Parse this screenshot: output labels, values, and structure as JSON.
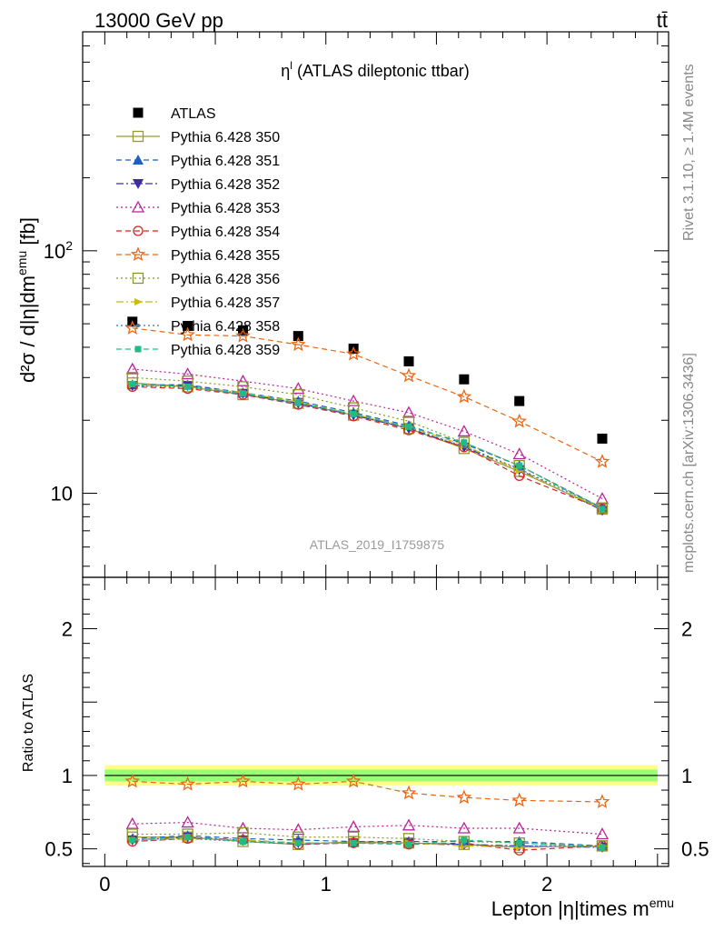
{
  "header": {
    "energy_label": "13000 GeV pp",
    "process_label": "tt̄"
  },
  "side_labels": {
    "rivet": "Rivet 3.1.10, ≥ 1.4M events",
    "mcplots": "mcplots.cern.ch [arXiv:1306.3436]"
  },
  "chart_data": [
    {
      "type": "scatter",
      "title": "η",
      "title_sup": "l",
      "title_rest": " (ATLAS dileptonic ttbar)",
      "ylabel": "d²σ / d|η|dm",
      "ylabel_sup": "emu",
      "ylabel_unit": " [fb]",
      "yscale": "log",
      "ylim": [
        4.5,
        800
      ],
      "xlim": [
        -0.1,
        2.55
      ],
      "yticks": [
        10,
        100
      ],
      "ytick_labels": [
        "10",
        "10²"
      ],
      "watermark": "ATLAS_2019_I1759875",
      "legend_position": "top-left",
      "x": [
        0.125,
        0.375,
        0.625,
        0.875,
        1.125,
        1.375,
        1.625,
        1.875,
        2.25
      ],
      "series": [
        {
          "name": "ATLAS",
          "color": "#000000",
          "marker": "square-filled",
          "line": "none",
          "values": [
            51.0,
            49.0,
            47.0,
            44.5,
            39.5,
            35.0,
            29.5,
            24.0,
            16.8
          ]
        },
        {
          "name": "Pythia 6.428 350",
          "color": "#999933",
          "marker": "square-open",
          "line": "solid",
          "values": [
            28.5,
            27.5,
            25.5,
            23.5,
            21.0,
            18.5,
            15.3,
            12.3,
            8.6
          ]
        },
        {
          "name": "Pythia 6.428 351",
          "color": "#1f5fbf",
          "marker": "triangle-up-filled",
          "line": "dashed",
          "values": [
            28.0,
            28.0,
            26.0,
            24.0,
            21.5,
            19.0,
            16.0,
            13.0,
            8.7
          ]
        },
        {
          "name": "Pythia 6.428 352",
          "color": "#3d2ca8",
          "marker": "triangle-down-filled",
          "line": "dashdot",
          "values": [
            27.8,
            27.8,
            25.8,
            23.5,
            21.0,
            18.5,
            15.5,
            12.5,
            8.5
          ]
        },
        {
          "name": "Pythia 6.428 353",
          "color": "#bb2299",
          "marker": "triangle-up-open",
          "line": "dotted",
          "values": [
            32.5,
            31.0,
            29.0,
            27.0,
            24.0,
            21.5,
            18.0,
            14.5,
            9.5
          ]
        },
        {
          "name": "Pythia 6.428 354",
          "color": "#dd2222",
          "marker": "circle-open",
          "line": "dashed",
          "values": [
            27.5,
            27.0,
            25.5,
            23.2,
            20.8,
            18.2,
            15.5,
            11.8,
            8.6
          ]
        },
        {
          "name": "Pythia 6.428 355",
          "color": "#ee6611",
          "marker": "star-open",
          "line": "dashed",
          "values": [
            48.0,
            45.0,
            44.5,
            41.0,
            37.5,
            30.5,
            25.0,
            19.8,
            13.5
          ]
        },
        {
          "name": "Pythia 6.428 356",
          "color": "#889922",
          "marker": "square-open",
          "line": "dotted",
          "values": [
            30.0,
            29.0,
            27.5,
            25.5,
            22.5,
            19.8,
            16.2,
            13.0,
            8.7
          ]
        },
        {
          "name": "Pythia 6.428 357",
          "color": "#ccbb11",
          "marker": "triangle-right",
          "line": "dashdot",
          "values": [
            28.0,
            27.5,
            26.0,
            23.8,
            21.2,
            18.8,
            15.8,
            12.4,
            8.6
          ]
        },
        {
          "name": "Pythia 6.428 358",
          "color": "#4477aa",
          "marker": "point",
          "line": "dotted",
          "values": [
            27.8,
            27.3,
            25.6,
            23.2,
            21.0,
            18.6,
            15.6,
            12.6,
            8.7
          ]
        },
        {
          "name": "Pythia 6.428 359",
          "color": "#22bb88",
          "marker": "square-small-filled",
          "line": "dashed",
          "values": [
            28.2,
            27.5,
            25.8,
            23.6,
            21.2,
            18.8,
            16.2,
            13.0,
            8.6
          ]
        }
      ]
    },
    {
      "type": "scatter",
      "ylabel": "Ratio to ATLAS",
      "xlabel": "Lepton |η|times m",
      "xlabel_sup": "emu",
      "ylim": [
        0.38,
        2.35
      ],
      "xlim": [
        -0.1,
        2.55
      ],
      "yticks": [
        0.5,
        1,
        2
      ],
      "ytick_labels": [
        "0.5",
        "1",
        "2"
      ],
      "xticks": [
        0,
        1,
        2
      ],
      "xtick_labels": [
        "0",
        "1",
        "2"
      ],
      "reference_line": 1,
      "uncertainty_band": {
        "inner": [
          0.96,
          1.04
        ],
        "outer": [
          0.93,
          1.07
        ],
        "inner_color": "#99ff77",
        "outer_color": "#ffff88"
      },
      "x": [
        0.125,
        0.375,
        0.625,
        0.875,
        1.125,
        1.375,
        1.625,
        1.875,
        2.25
      ],
      "series": [
        {
          "name": "Pythia 6.428 350",
          "values": [
            0.58,
            0.58,
            0.55,
            0.53,
            0.55,
            0.54,
            0.53,
            0.51,
            0.52
          ]
        },
        {
          "name": "Pythia 6.428 351",
          "values": [
            0.57,
            0.59,
            0.57,
            0.56,
            0.55,
            0.55,
            0.55,
            0.55,
            0.52
          ]
        },
        {
          "name": "Pythia 6.428 352",
          "values": [
            0.56,
            0.58,
            0.56,
            0.54,
            0.54,
            0.54,
            0.53,
            0.52,
            0.51
          ]
        },
        {
          "name": "Pythia 6.428 353",
          "values": [
            0.67,
            0.68,
            0.64,
            0.63,
            0.65,
            0.66,
            0.64,
            0.64,
            0.6
          ]
        },
        {
          "name": "Pythia 6.428 354",
          "values": [
            0.55,
            0.57,
            0.56,
            0.53,
            0.54,
            0.53,
            0.54,
            0.49,
            0.52
          ]
        },
        {
          "name": "Pythia 6.428 355",
          "values": [
            0.96,
            0.94,
            0.96,
            0.94,
            0.96,
            0.88,
            0.85,
            0.83,
            0.82
          ]
        },
        {
          "name": "Pythia 6.428 356",
          "values": [
            0.6,
            0.6,
            0.61,
            0.58,
            0.58,
            0.57,
            0.55,
            0.54,
            0.52
          ]
        },
        {
          "name": "Pythia 6.428 357",
          "values": [
            0.56,
            0.57,
            0.56,
            0.54,
            0.54,
            0.54,
            0.52,
            0.51,
            0.52
          ]
        },
        {
          "name": "Pythia 6.428 358",
          "values": [
            0.55,
            0.57,
            0.55,
            0.53,
            0.54,
            0.54,
            0.53,
            0.52,
            0.52
          ]
        },
        {
          "name": "Pythia 6.428 359",
          "values": [
            0.56,
            0.58,
            0.55,
            0.54,
            0.54,
            0.53,
            0.56,
            0.54,
            0.51
          ]
        }
      ]
    }
  ]
}
